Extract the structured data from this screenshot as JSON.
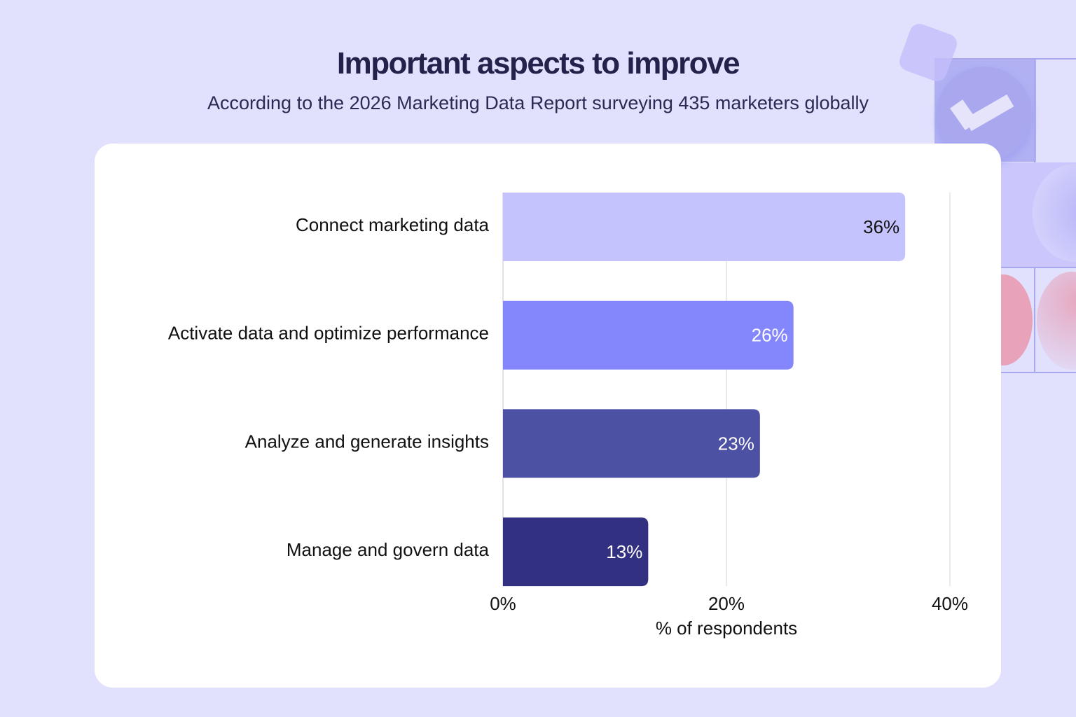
{
  "title": "Important aspects to improve",
  "subtitle": "According to the 2026 Marketing Data Report surveying 435 marketers globally",
  "colors": {
    "background": "#e1e0fd",
    "card": "#ffffff",
    "bars": [
      "#c4c3fd",
      "#8486fc",
      "#4d51a3",
      "#323181"
    ]
  },
  "chart_data": {
    "type": "bar",
    "orientation": "horizontal",
    "categories": [
      "Connect marketing data",
      "Activate data and optimize performance",
      "Analyze and generate insights",
      "Manage and govern data"
    ],
    "values": [
      36,
      26,
      23,
      13
    ],
    "data_labels": [
      "36%",
      "26%",
      "23%",
      "13%"
    ],
    "xlabel": "% of respondents",
    "xlim": [
      0,
      40
    ],
    "xticks": [
      0,
      20,
      40
    ],
    "xtick_labels": [
      "0%",
      "20%",
      "40%"
    ],
    "grid": true
  }
}
